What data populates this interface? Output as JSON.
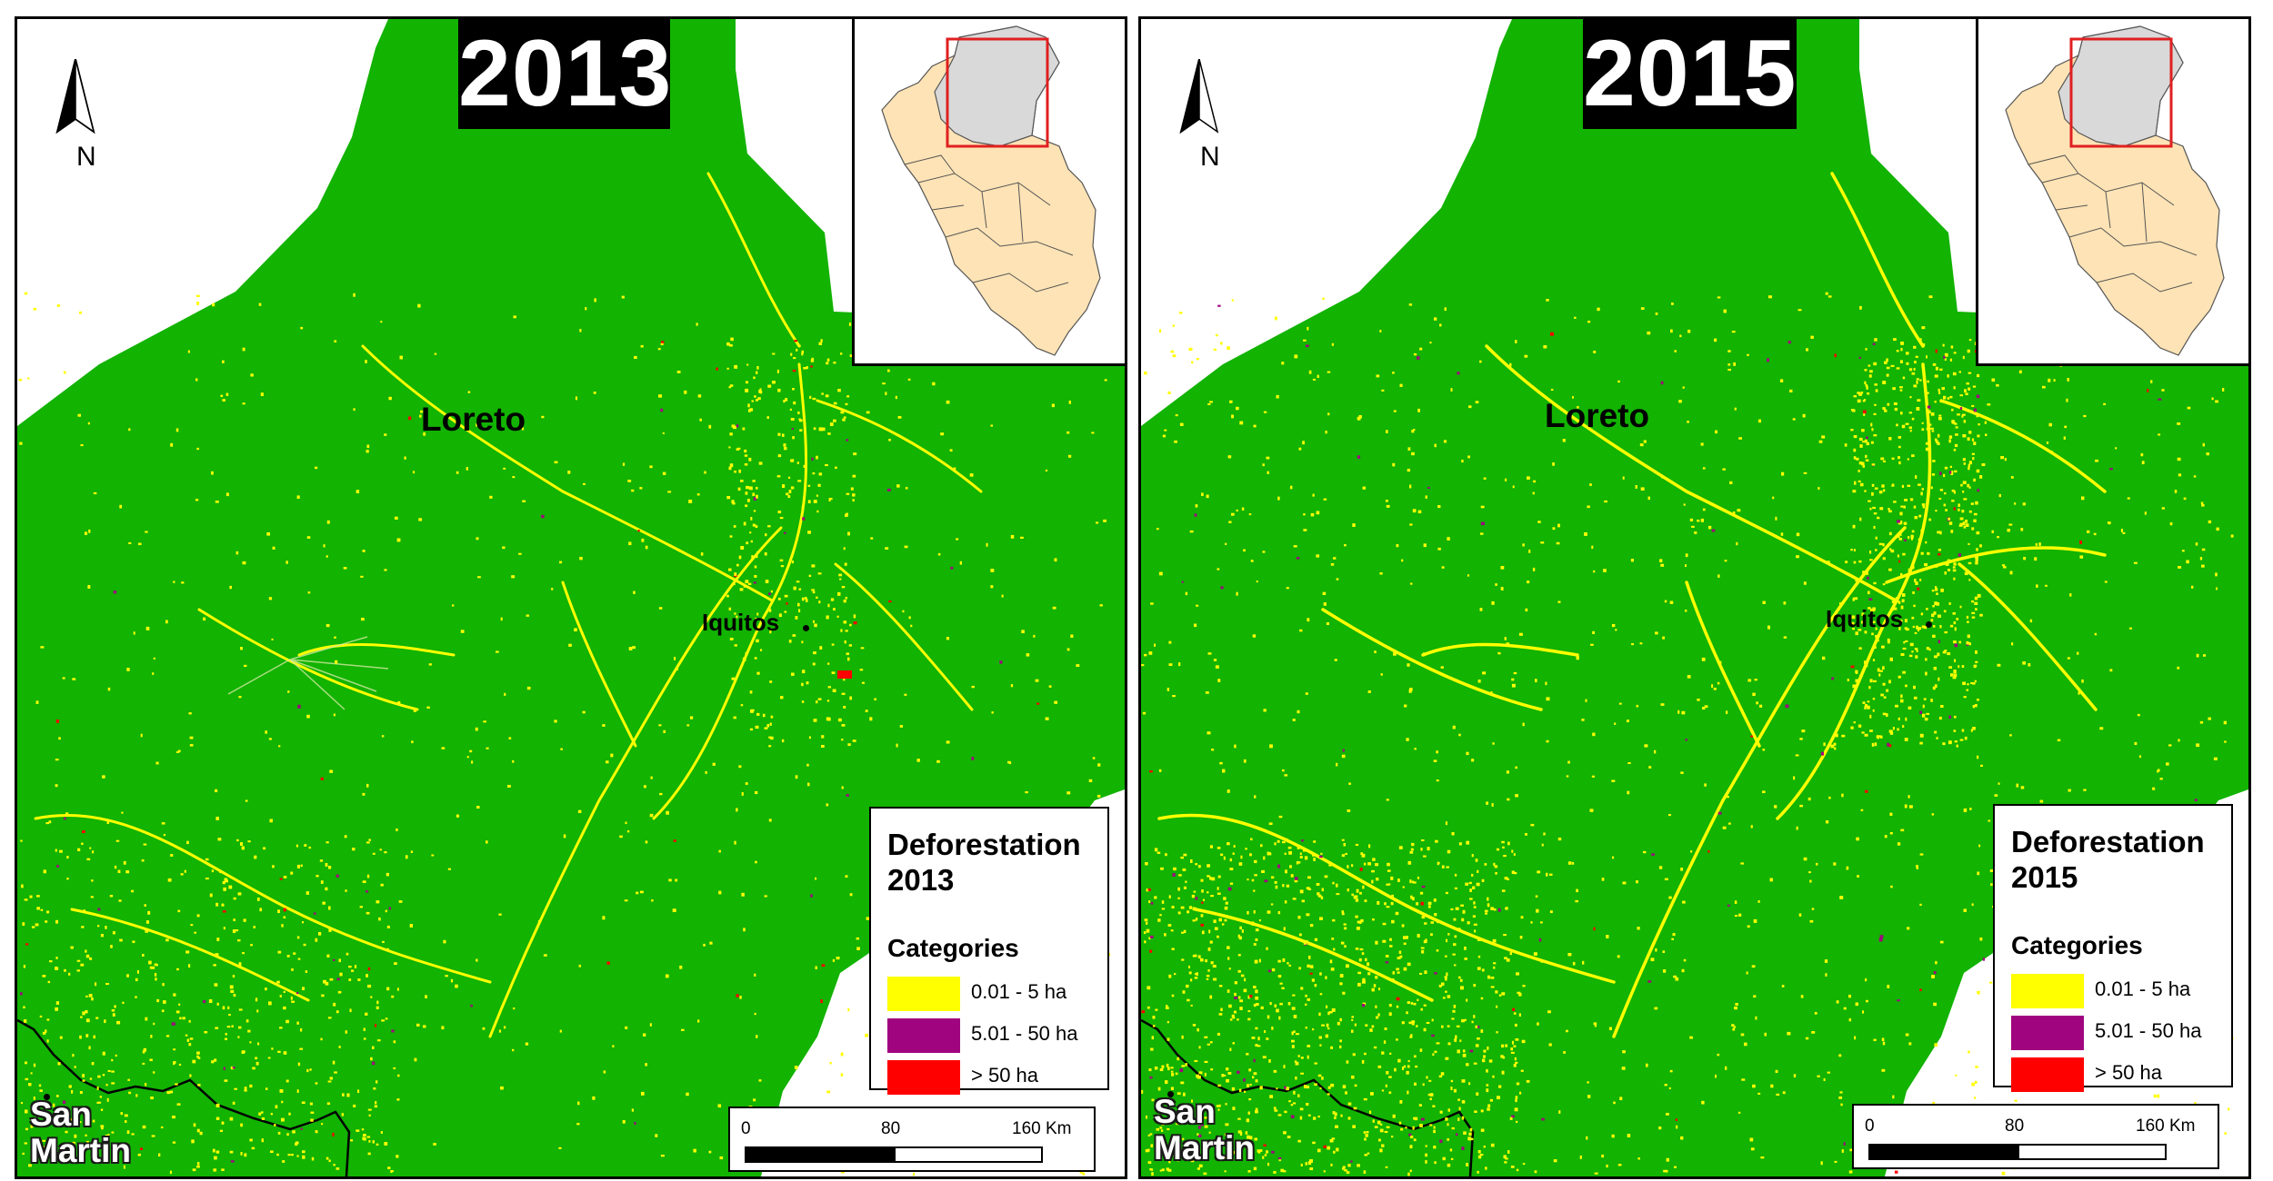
{
  "colors": {
    "forest": "#12b301",
    "outside": "#ffffff",
    "small": "#ffff00",
    "medium": "#a0057f",
    "large": "#ff0000",
    "peru_fill": "#fde3b5",
    "loreto_fill": "#d9d9d9",
    "inset_box": "#e02020"
  },
  "panels": [
    {
      "year_title": "2013",
      "north_label": "N",
      "region_label": "Loreto",
      "city_label": "Iquitos",
      "bottom_region_label": "San Martin",
      "legend": {
        "title": "Deforestation 2013",
        "subtitle": "Categories",
        "items": [
          {
            "label": "0.01 - 5 ha",
            "color": "#ffff00"
          },
          {
            "label": "5.01 - 50 ha",
            "color": "#a0057f"
          },
          {
            "label": "> 50 ha",
            "color": "#ff0000"
          }
        ]
      },
      "scale": {
        "ticks": [
          "0",
          "80",
          "160 Km"
        ]
      }
    },
    {
      "year_title": "2015",
      "north_label": "N",
      "region_label": "Loreto",
      "city_label": "Iquitos",
      "bottom_region_label": "San Martin",
      "legend": {
        "title": "Deforestation 2015",
        "subtitle": "Categories",
        "items": [
          {
            "label": "0.01 - 5 ha",
            "color": "#ffff00"
          },
          {
            "label": "5.01 - 50 ha",
            "color": "#a0057f"
          },
          {
            "label": "> 50 ha",
            "color": "#ff0000"
          }
        ]
      },
      "scale": {
        "ticks": [
          "0",
          "80",
          "160 Km"
        ]
      }
    }
  ]
}
